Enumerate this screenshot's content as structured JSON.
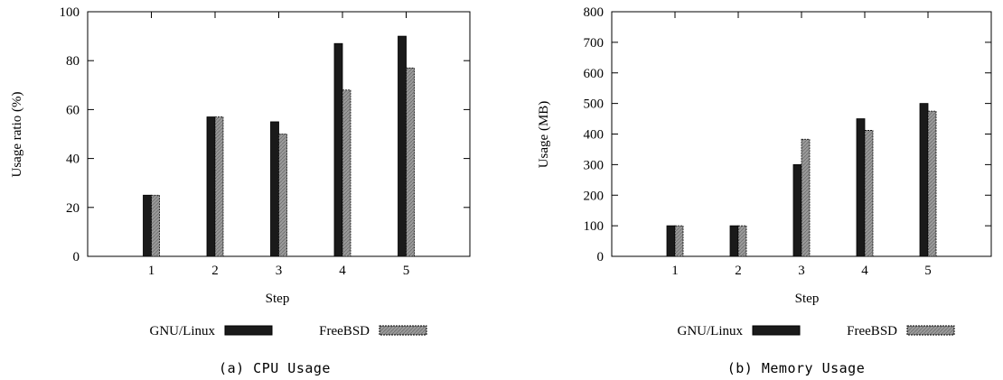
{
  "chart_data": [
    {
      "type": "bar",
      "caption": "(a) CPU Usage",
      "xlabel": "Step",
      "ylabel": "Usage ratio (%)",
      "categories": [
        "1",
        "2",
        "3",
        "4",
        "5"
      ],
      "ylim": [
        0,
        100
      ],
      "yticks": [
        0,
        20,
        40,
        60,
        80,
        100
      ],
      "legend_position": "bottom",
      "series": [
        {
          "name": "GNU/Linux",
          "color": "#1a1a1a",
          "values": [
            25,
            57,
            55,
            87,
            90
          ]
        },
        {
          "name": "FreeBSD",
          "color": "#999999",
          "values": [
            25,
            57,
            50,
            68,
            77
          ]
        }
      ]
    },
    {
      "type": "bar",
      "caption": "(b) Memory Usage",
      "xlabel": "Step",
      "ylabel": "Usage (MB)",
      "categories": [
        "1",
        "2",
        "3",
        "4",
        "5"
      ],
      "ylim": [
        0,
        800
      ],
      "yticks": [
        0,
        100,
        200,
        300,
        400,
        500,
        600,
        700,
        800
      ],
      "legend_position": "bottom",
      "series": [
        {
          "name": "GNU/Linux",
          "color": "#1a1a1a",
          "values": [
            100,
            100,
            300,
            450,
            500
          ]
        },
        {
          "name": "FreeBSD",
          "color": "#999999",
          "values": [
            100,
            100,
            383,
            412,
            475
          ]
        }
      ]
    }
  ]
}
